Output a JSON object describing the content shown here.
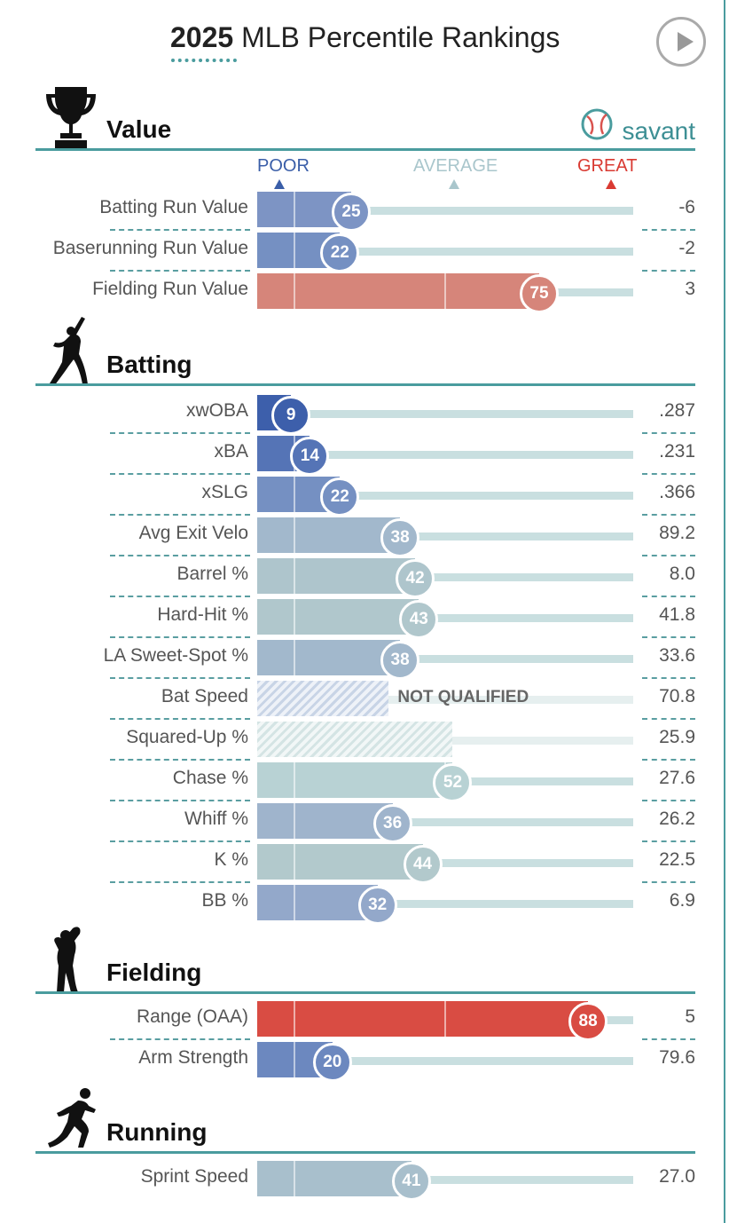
{
  "header": {
    "year": "2025",
    "title_rest": "MLB Percentile Rankings"
  },
  "brand": {
    "name": "savant"
  },
  "scale": {
    "poor": "POOR",
    "average": "AVERAGE",
    "great": "GREAT",
    "colors": {
      "poor": "#3a5ea8",
      "average": "#a9c6cc",
      "great": "#d93a32"
    }
  },
  "chart_data": {
    "type": "bar",
    "title": "2025 MLB Percentile Rankings",
    "xlim": [
      0,
      100
    ],
    "sections": [
      {
        "name": "Value",
        "icon": "trophy-icon",
        "rows": [
          {
            "label": "Batting Run Value",
            "percentile": 25,
            "value": "-6",
            "color": "#7d94c4"
          },
          {
            "label": "Baserunning Run Value",
            "percentile": 22,
            "value": "-2",
            "color": "#7590c2"
          },
          {
            "label": "Fielding Run Value",
            "percentile": 75,
            "value": "3",
            "color": "#d6857a"
          }
        ]
      },
      {
        "name": "Batting",
        "icon": "batter-icon",
        "rows": [
          {
            "label": "xwOBA",
            "percentile": 9,
            "value": ".287",
            "color": "#3d5fab"
          },
          {
            "label": "xBA",
            "percentile": 14,
            "value": ".231",
            "color": "#5574b6"
          },
          {
            "label": "xSLG",
            "percentile": 22,
            "value": ".366",
            "color": "#7590c2"
          },
          {
            "label": "Avg Exit Velo",
            "percentile": 38,
            "value": "89.2",
            "color": "#a2b8cc"
          },
          {
            "label": "Barrel %",
            "percentile": 42,
            "value": "8.0",
            "color": "#aec5cc"
          },
          {
            "label": "Hard-Hit %",
            "percentile": 43,
            "value": "41.8",
            "color": "#b0c7cc"
          },
          {
            "label": "LA Sweet-Spot %",
            "percentile": 38,
            "value": "33.6",
            "color": "#a2b8cc"
          },
          {
            "label": "Bat Speed",
            "percentile": 35,
            "value": "70.8",
            "qualified": false,
            "note": "NOT QUALIFIED"
          },
          {
            "label": "Squared-Up %",
            "percentile": 52,
            "value": "25.9",
            "qualified": false
          },
          {
            "label": "Chase %",
            "percentile": 52,
            "value": "27.6",
            "color": "#b8d2d4"
          },
          {
            "label": "Whiff %",
            "percentile": 36,
            "value": "26.2",
            "color": "#9fb4cc"
          },
          {
            "label": "K %",
            "percentile": 44,
            "value": "22.5",
            "color": "#b2c9cc"
          },
          {
            "label": "BB %",
            "percentile": 32,
            "value": "6.9",
            "color": "#93a8ca"
          }
        ]
      },
      {
        "name": "Fielding",
        "icon": "fielder-icon",
        "rows": [
          {
            "label": "Range (OAA)",
            "percentile": 88,
            "value": "5",
            "color": "#d94c43"
          },
          {
            "label": "Arm Strength",
            "percentile": 20,
            "value": "79.6",
            "color": "#6c88bf"
          }
        ]
      },
      {
        "name": "Running",
        "icon": "runner-icon",
        "rows": [
          {
            "label": "Sprint Speed",
            "percentile": 41,
            "value": "27.0",
            "color": "#a8bfcc"
          }
        ]
      }
    ]
  }
}
